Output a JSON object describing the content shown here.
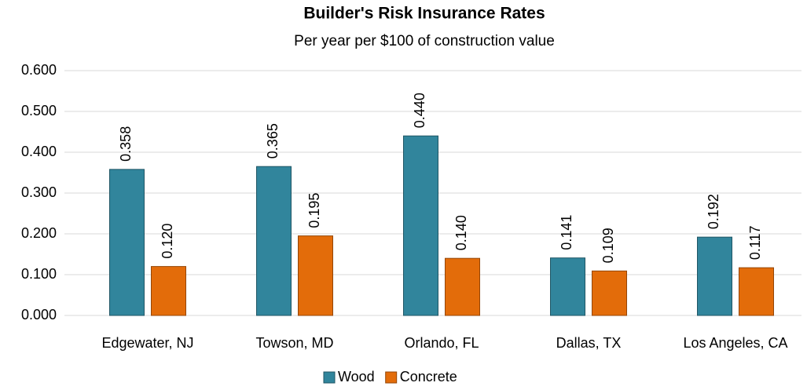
{
  "chart_data": {
    "type": "bar",
    "title": "Builder's Risk Insurance Rates",
    "subtitle": "Per year per $100 of construction value",
    "categories": [
      "Edgewater, NJ",
      "Towson, MD",
      "Orlando, FL",
      "Dallas, TX",
      "Los Angeles, CA"
    ],
    "series": [
      {
        "name": "Wood",
        "color": "#31859c",
        "values": [
          0.358,
          0.365,
          0.44,
          0.141,
          0.192
        ],
        "value_labels": [
          "0.358",
          "0.365",
          "0.440",
          "0.141",
          "0.192"
        ]
      },
      {
        "name": "Concrete",
        "color": "#e36c0a",
        "values": [
          0.12,
          0.195,
          0.14,
          0.109,
          0.117
        ],
        "value_labels": [
          "0.120",
          "0.195",
          "0.140",
          "0.109",
          "0.117"
        ]
      }
    ],
    "ylim": [
      0,
      0.6
    ],
    "yticks": [
      {
        "value": 0,
        "label": "0.000"
      },
      {
        "value": 0.1,
        "label": "0.100"
      },
      {
        "value": 0.2,
        "label": "0.200"
      },
      {
        "value": 0.3,
        "label": "0.300"
      },
      {
        "value": 0.4,
        "label": "0.400"
      },
      {
        "value": 0.5,
        "label": "0.500"
      },
      {
        "value": 0.6,
        "label": "0.600"
      }
    ],
    "grid": true,
    "legend": "bottom"
  }
}
